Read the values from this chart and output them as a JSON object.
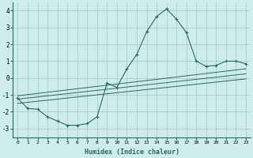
{
  "xlabel": "Humidex (Indice chaleur)",
  "background_color": "#ceecea",
  "grid_color": "#a8ceca",
  "line_color": "#2a6b5a",
  "xlim": [
    -0.5,
    23.5
  ],
  "ylim": [
    -3.5,
    4.5
  ],
  "yticks": [
    -3,
    -2,
    -1,
    0,
    1,
    2,
    3,
    4
  ],
  "xticks": [
    0,
    1,
    2,
    3,
    4,
    5,
    6,
    7,
    8,
    9,
    10,
    11,
    12,
    13,
    14,
    15,
    16,
    17,
    18,
    19,
    20,
    21,
    22,
    23
  ],
  "main_x": [
    0,
    1,
    2,
    3,
    4,
    5,
    6,
    7,
    8,
    9,
    10,
    11,
    12,
    13,
    14,
    15,
    16,
    17,
    18,
    19,
    20,
    21,
    22,
    23
  ],
  "main_y": [
    -1.2,
    -1.8,
    -1.85,
    -2.3,
    -2.55,
    -2.8,
    -2.8,
    -2.7,
    -2.3,
    -0.3,
    -0.55,
    0.55,
    1.4,
    2.75,
    3.65,
    4.1,
    3.5,
    2.7,
    1.0,
    0.7,
    0.75,
    1.0,
    1.0,
    0.85
  ],
  "upper_line_x": [
    0,
    23
  ],
  "upper_line_y": [
    -1.05,
    0.55
  ],
  "lower_line_x": [
    0,
    23
  ],
  "lower_line_y": [
    -1.5,
    -0.05
  ],
  "middle_line_x": [
    0,
    23
  ],
  "middle_line_y": [
    -1.25,
    0.25
  ]
}
